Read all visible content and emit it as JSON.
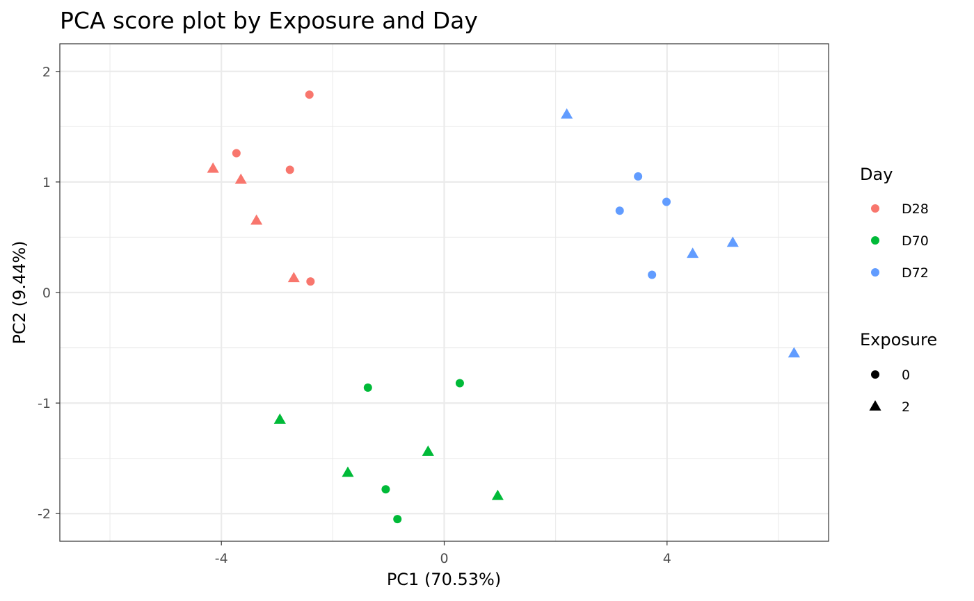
{
  "chart_data": {
    "type": "scatter",
    "title": "PCA score plot by Exposure and Day",
    "xlabel": "PC1 (70.53%)",
    "ylabel": "PC2 (9.44%)",
    "xlim": [
      -6.9,
      6.9
    ],
    "ylim": [
      -2.25,
      2.25
    ],
    "x_ticks": [
      -4,
      0,
      4
    ],
    "x_tick_labels": [
      "-4",
      "0",
      "4"
    ],
    "y_ticks": [
      -2,
      -1,
      0,
      1,
      2
    ],
    "y_tick_labels": [
      "-2",
      "-1",
      "0",
      "1",
      "2"
    ],
    "grid": true,
    "legend_position": "right",
    "color_legend": {
      "title": "Day",
      "items": [
        {
          "label": "D28",
          "color": "#F8766D"
        },
        {
          "label": "D70",
          "color": "#00BA38"
        },
        {
          "label": "D72",
          "color": "#619CFF"
        }
      ]
    },
    "shape_legend": {
      "title": "Exposure",
      "items": [
        {
          "label": "0",
          "shape": "circle"
        },
        {
          "label": "2",
          "shape": "triangle"
        }
      ]
    },
    "series": [
      {
        "day": "D28",
        "exposure": "0",
        "x": [
          -2.42,
          -3.73,
          -2.77,
          -2.4
        ],
        "y": [
          1.79,
          1.26,
          1.11,
          0.1
        ]
      },
      {
        "day": "D28",
        "exposure": "2",
        "x": [
          -4.15,
          -3.65,
          -3.37,
          -2.7
        ],
        "y": [
          1.12,
          1.02,
          0.65,
          0.13
        ]
      },
      {
        "day": "D70",
        "exposure": "0",
        "x": [
          -1.37,
          0.28,
          -1.05,
          -0.84
        ],
        "y": [
          -0.86,
          -0.82,
          -1.78,
          -2.05
        ]
      },
      {
        "day": "D70",
        "exposure": "2",
        "x": [
          -2.95,
          -1.73,
          -0.29,
          0.96
        ],
        "y": [
          -1.15,
          -1.63,
          -1.44,
          -1.84
        ]
      },
      {
        "day": "D72",
        "exposure": "0",
        "x": [
          3.48,
          3.15,
          3.99,
          3.73
        ],
        "y": [
          1.05,
          0.74,
          0.82,
          0.16
        ]
      },
      {
        "day": "D72",
        "exposure": "2",
        "x": [
          2.2,
          4.46,
          5.18,
          6.28
        ],
        "y": [
          1.61,
          0.35,
          0.45,
          -0.55
        ]
      }
    ]
  }
}
